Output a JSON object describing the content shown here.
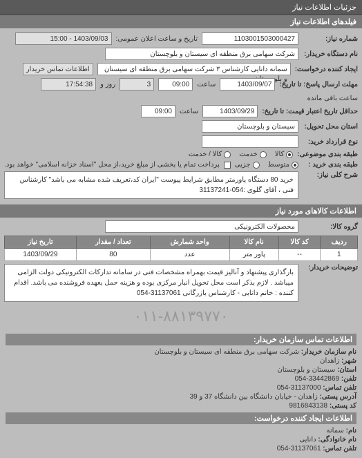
{
  "header": "جزئیات اطلاعات نیاز",
  "section1_title": "فیلدهای اطلاعات نیاز",
  "form": {
    "ref_label": "شماره نیاز:",
    "ref_value": "1103001503000427",
    "datetime_label": "تاریخ و ساعت اعلان عمومی:",
    "datetime_value": "1403/09/03 - 15:00",
    "buyer_label": "نام دستگاه خریدار:",
    "buyer_value": "شرکت سهامی برق منطقه ای سیستان و بلوچستان",
    "requester_label": "ایجاد کننده درخواست:",
    "requester_value": "سمانه دانایی کارشناس ۳ شرکت سهامی برق منطقه ای سیستان و بلوچستان",
    "contact_btn": "اطلاعات تماس خریدار",
    "deadline_label": "مهلت ارسال پاسخ: تا تاریخ:",
    "deadline_date": "1403/09/07",
    "deadline_time_label": "ساعت",
    "deadline_time": "09:00",
    "remain_days": "3",
    "remain_days_label": "روز و",
    "remain_time": "17:54:38",
    "remain_label": "ساعت باقی مانده",
    "credit_label": "حداقل تاریخ اعتبار قیمت: تا تاریخ:",
    "credit_date": "1403/09/29",
    "credit_time": "09:00",
    "location_label": "استان محل تحویل:",
    "location_value": "سیستان و بلوچستان",
    "agreement_label": "نوع قرارداد خرید:",
    "buy_type_label": "طبقه بندی موضوعی:",
    "radios": {
      "goods": "کالا",
      "service": "خدمت",
      "both": "کالا / خدمت"
    },
    "pay_type_label": "طبقه بندی خرید :",
    "pay_radios": {
      "low": "متوسط",
      "med": "جزیی"
    },
    "check_label": "پرداخت تمام یا بخشی از مبلغ خرید،از محل \"اسناد خزانه اسلامی\" خواهد بود.",
    "general_label": "شرح کلی نیاز:",
    "general_text": "خرید 80 دستگاه پاورمتر مطابق شرایط پیوست \"ایران کد،تعریف شده مشابه می باشد\" کارشناس فنی ، آقای گلوی :054-31137241"
  },
  "section2_title": "اطلاعات کالاهای مورد نیاز",
  "group_label": "گروه کالا:",
  "group_value": "محصولات الکترونیکی",
  "table": {
    "headers": [
      "ردیف",
      "کد کالا",
      "نام کالا",
      "واحد شمارش",
      "تعداد / مقدار",
      "تاریخ نیاز"
    ],
    "rows": [
      [
        "1",
        "--",
        "پاور متر",
        "عدد",
        "80",
        "1403/09/29"
      ]
    ]
  },
  "notes_label": "توضیحات خریدار:",
  "notes_text": "بارگذاری پیشنهاد و آنالیز قیمت بهمراه مشخصات فنی در سامانه تدارکات الکترونیکی دولت الزامی میباشد . لازم بذکر است محل تحویل انبار مرکزی بوده و هزینه حمل بعهده فروشنده می باشد. اقدام کننده : خانم دانایی - کارشناس بازرگانی 31137061-054",
  "watermark": "۰۱۱-۸۸۱۳۹۷۷۰",
  "contact_section": {
    "title": "اطلاعات تماس سازمان خریدار:",
    "org_label": "نام سازمان خریدار:",
    "org_value": "شرکت سهامی برق منطقه ای سیستان و بلوچستان",
    "city_label": "شهر:",
    "city_value": "زاهدان",
    "province_label": "استان:",
    "province_value": "سیستان و بلوچستان",
    "tel_label": "تلفن:",
    "tel_value": "33442869-054",
    "fax_label": "تلفن تماس:",
    "fax_value": "31137000-054",
    "addr_label": "آدرس پستی:",
    "addr_value": "زاهدان - خیابان دانشگاه بین دانشگاه 37 و 39",
    "postal_label": "کد پستی:",
    "postal_value": "9816843138"
  },
  "creator_section": {
    "title": "اطلاعات ایجاد کننده درخواست:",
    "name_label": "نام:",
    "name_value": "سمانه",
    "family_label": "نام خانوادگی:",
    "family_value": "دانایی",
    "phone_label": "تلفن تماس:",
    "phone_value": "31137061-054"
  }
}
